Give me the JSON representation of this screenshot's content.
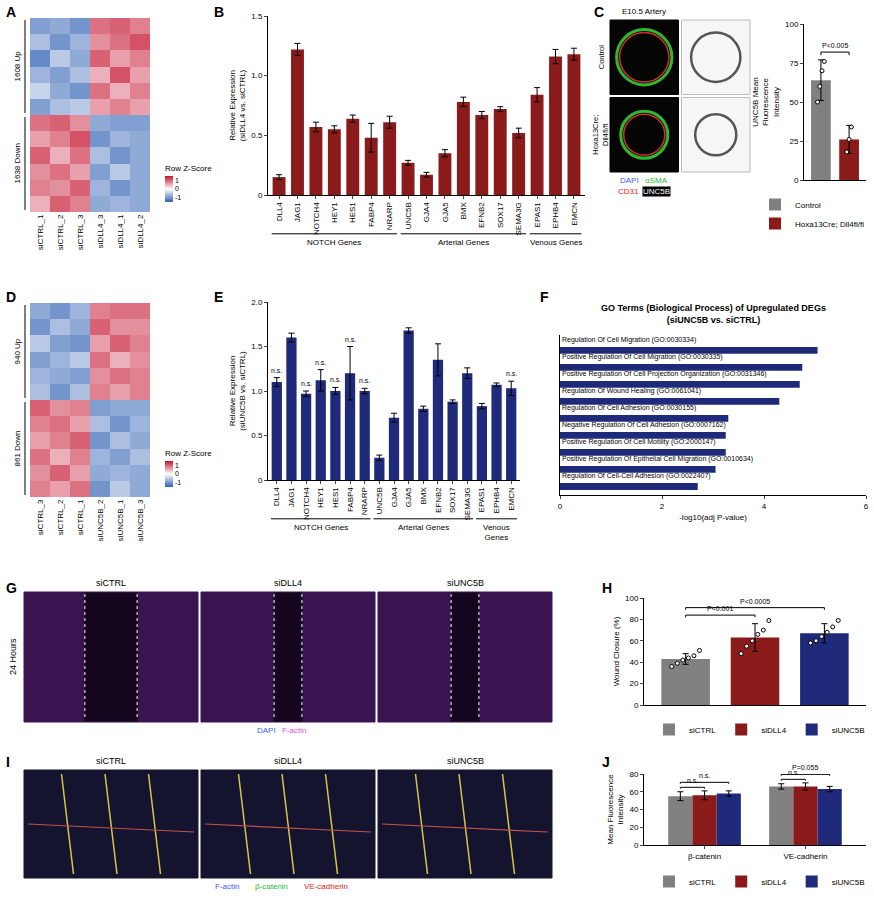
{
  "chart_data": [
    {
      "panel": "A",
      "type": "heatmap",
      "tick_labels": "x",
      "columns": [
        "siCTRL_1",
        "siCTRL_2",
        "siCTRL_3",
        "siDLL4_3",
        "siDLL4_1",
        "siDLL4_2"
      ],
      "groups": [
        {
          "label": "1608 Up",
          "z": [
            [
              -0.9,
              -0.8,
              -1.0,
              0.9,
              1.0,
              0.8
            ],
            [
              -0.6,
              -1.0,
              -0.7,
              0.7,
              0.9,
              1.1
            ],
            [
              -1.1,
              -0.5,
              -0.8,
              1.0,
              0.6,
              0.8
            ],
            [
              -0.7,
              -0.9,
              -0.6,
              0.5,
              1.1,
              0.6
            ],
            [
              -0.4,
              -0.8,
              -1.0,
              0.9,
              0.5,
              0.8
            ],
            [
              -0.9,
              -0.6,
              -0.5,
              0.6,
              0.8,
              0.6
            ]
          ]
        },
        {
          "label": "1638 Down",
          "z": [
            [
              0.9,
              1.0,
              0.7,
              -0.8,
              -0.9,
              -0.9
            ],
            [
              0.6,
              0.8,
              1.1,
              -1.0,
              -0.7,
              -0.8
            ],
            [
              1.0,
              0.5,
              0.9,
              -0.6,
              -1.0,
              -0.8
            ],
            [
              0.7,
              0.9,
              0.6,
              -0.9,
              -0.5,
              -0.8
            ],
            [
              0.8,
              0.7,
              1.0,
              -0.7,
              -1.0,
              -0.8
            ],
            [
              0.5,
              1.0,
              0.8,
              -0.8,
              -0.7,
              -0.8
            ]
          ]
        }
      ],
      "colorbar": {
        "title": "Row Z-Score",
        "range": [
          -1.5,
          1.5
        ],
        "ticks": [
          -1,
          0,
          1
        ]
      }
    },
    {
      "panel": "B",
      "type": "bar",
      "categories": [
        "DLL4",
        "JAG1",
        "NOTCH4",
        "HEY1",
        "HES1",
        "FABP4",
        "NRARP",
        "UNC5B",
        "GJA4",
        "GJA5",
        "BMX",
        "EFNB2",
        "SOX17",
        "SEMA3G",
        "EPAS1",
        "EPHB4",
        "EMCN"
      ],
      "values": [
        0.15,
        1.22,
        0.57,
        0.55,
        0.64,
        0.48,
        0.61,
        0.27,
        0.17,
        0.35,
        0.78,
        0.67,
        0.72,
        0.52,
        0.84,
        1.16,
        1.18
      ],
      "errors": [
        0.02,
        0.05,
        0.04,
        0.03,
        0.03,
        0.12,
        0.05,
        0.02,
        0.02,
        0.03,
        0.04,
        0.03,
        0.02,
        0.04,
        0.06,
        0.06,
        0.05
      ],
      "color": "#8b1a1a",
      "ylabel": "Relative Expression (siDLL4 vs. siCTRL)",
      "ylim": [
        0,
        1.5
      ],
      "yticks": [
        0,
        0.5,
        {
          "value": 1,
          "label": "1.0"
        },
        1.5
      ],
      "groups": [
        {
          "label": "NOTCH Genes",
          "from": "DLL4",
          "to": "NRARP"
        },
        {
          "label": "Arterial Genes",
          "from": "UNC5B",
          "to": "SEMA3G"
        },
        {
          "label": "Venous Genes",
          "from": "EPAS1",
          "to": "EMCN"
        }
      ]
    },
    {
      "type": "bar",
      "categories": [
        "Control",
        "Hoxa13Cre; Dll4fl/fl"
      ],
      "values": [
        64,
        26
      ],
      "errors": [
        13,
        9
      ],
      "points": [
        [
          50,
          60,
          70,
          76
        ],
        [
          18,
          26,
          34
        ]
      ],
      "colors": [
        "#808080",
        "#8b1a1a"
      ],
      "ylabel": "UNC5B Mean Fluorescence Intensity",
      "ylim": [
        0,
        100
      ],
      "yticks": [
        0,
        25,
        50,
        75,
        100
      ],
      "tick_labels": "y",
      "legend": "bottom",
      "comparisons": [
        {
          "from": "Control",
          "to": "Hoxa13Cre; Dll4fl/fl",
          "text": "P<0.005"
        }
      ]
    },
    {
      "panel": "D",
      "type": "heatmap",
      "tick_labels": "x",
      "columns": [
        "siCTRL_3",
        "siCTRL_2",
        "siCTRL_1",
        "siUNC5B_2",
        "siUNC5B_1",
        "siUNC5B_3"
      ],
      "groups": [
        {
          "label": "940 Up",
          "z": [
            [
              -0.8,
              -1.0,
              -0.7,
              0.8,
              0.9,
              0.9
            ],
            [
              -1.0,
              -0.6,
              -0.8,
              1.0,
              0.7,
              0.7
            ],
            [
              -0.5,
              -0.9,
              -1.0,
              0.6,
              1.0,
              0.8
            ],
            [
              -0.9,
              -0.7,
              -0.5,
              0.9,
              0.5,
              0.7
            ],
            [
              -0.7,
              -0.8,
              -0.9,
              0.7,
              0.9,
              0.8
            ],
            [
              -0.6,
              -1.0,
              -0.6,
              0.8,
              0.6,
              0.8
            ]
          ]
        },
        {
          "label": "861 Down",
          "z": [
            [
              1.0,
              0.7,
              0.8,
              -0.9,
              -0.8,
              -0.8
            ],
            [
              0.8,
              0.9,
              0.6,
              -0.6,
              -1.0,
              -0.7
            ],
            [
              0.6,
              0.8,
              1.0,
              -1.0,
              -0.6,
              -0.8
            ],
            [
              0.9,
              0.5,
              0.8,
              -0.7,
              -0.9,
              -0.6
            ],
            [
              0.7,
              1.0,
              0.6,
              -0.8,
              -0.7,
              -0.8
            ],
            [
              0.8,
              0.6,
              0.9,
              -1.0,
              -0.5,
              -0.8
            ]
          ]
        }
      ],
      "colorbar": {
        "title": "Row Z-Score",
        "range": [
          -1.5,
          1.5
        ],
        "ticks": [
          -1,
          0,
          1
        ]
      }
    },
    {
      "panel": "E",
      "type": "bar",
      "categories": [
        "DLL4",
        "JAG1",
        "NOTCH4",
        "HEY1",
        "HES1",
        "FABP4",
        "NRARP",
        "UNC5B",
        "GJA4",
        "GJA5",
        "BMX",
        "EFNB2",
        "SOX17",
        "SEMA3G",
        "EPAS1",
        "EPHB4",
        "EMCN"
      ],
      "values": [
        1.1,
        1.6,
        0.97,
        1.12,
        1.0,
        1.2,
        1.0,
        0.25,
        0.7,
        1.68,
        0.8,
        1.35,
        0.88,
        1.2,
        0.83,
        1.07,
        1.03
      ],
      "errors": [
        0.05,
        0.05,
        0.03,
        0.12,
        0.04,
        0.3,
        0.03,
        0.03,
        0.05,
        0.03,
        0.03,
        0.18,
        0.02,
        0.06,
        0.03,
        0.02,
        0.08
      ],
      "color": "#1f2a7a",
      "ylabel": "Relative Expression (siUNC5B vs. siCTRL)",
      "ylim": [
        0,
        2
      ],
      "yticks": [
        0,
        0.5,
        {
          "value": 1,
          "label": "1.0"
        },
        1.5,
        {
          "value": 2,
          "label": "2.0"
        }
      ],
      "groups": [
        {
          "label": "NOTCH Genes",
          "from": "DLL4",
          "to": "NRARP"
        },
        {
          "label": "Arterial Genes",
          "from": "UNC5B",
          "to": "SEMA3G"
        },
        {
          "label": "Venous Genes",
          "from": "EPAS1",
          "to": "EMCN"
        }
      ],
      "annotations": [
        {
          "category": "DLL4",
          "text": "n.s."
        },
        {
          "category": "NOTCH4",
          "text": "n.s."
        },
        {
          "category": "HEY1",
          "text": "n.s."
        },
        {
          "category": "HES1",
          "text": "n.s."
        },
        {
          "category": "FABP4",
          "text": "n.s."
        },
        {
          "category": "NRARP",
          "text": "n.s."
        },
        {
          "category": "EMCN",
          "text": "n.s."
        }
      ]
    },
    {
      "panel": "F",
      "type": "bar",
      "orientation": "horizontal",
      "tick_labels": "x",
      "title": "GO Terms (Biological Process) of Upregulated DEGs (siUNC5B vs. siCTRL)",
      "categories": [
        "Regulation Of Cell Migration (GO:0030334)",
        "Positive Regulation Of Cell Migration (GO:0030335)",
        "Positive Regulation Of Cell Projection Organization (GO:0031346)",
        "Regulation Of Wound Healing (GO:0061041)",
        "Regulation Of Cell Adhesion (GO:0030155)",
        "Negative Regulation Of Cell Adhesion (GO:0007162)",
        "Positive Regulation Of Cell Motility (GO:2000147)",
        "Positive Regulation Of Epithelial Cell Migration (GO:0010634)",
        "Regulation Of Cell-Cell Adhesion (GO:0022407)"
      ],
      "values": [
        5.05,
        4.75,
        4.7,
        4.3,
        3.3,
        3.25,
        3.25,
        3.05,
        2.7
      ],
      "color": "#1f2a7a",
      "xlabel": "-log10(adj P-value)",
      "xlim": [
        0,
        6
      ],
      "xticks": [
        0,
        2,
        4,
        6
      ]
    },
    {
      "panel": "H",
      "type": "bar",
      "categories": [
        "siCTRL",
        "siDLL4",
        "siUNC5B"
      ],
      "values": [
        43,
        63,
        67
      ],
      "errors": [
        5,
        13,
        9
      ],
      "points": [
        [
          36,
          39,
          42,
          44,
          46,
          51
        ],
        [
          48,
          55,
          60,
          66,
          70,
          79
        ],
        [
          58,
          60,
          64,
          68,
          73,
          79
        ]
      ],
      "colors": [
        "#808080",
        "#8b1a1a",
        "#1f2a7a"
      ],
      "ylabel": "Wound Closure (%)",
      "ylim": [
        0,
        100
      ],
      "yticks": [
        0,
        20,
        40,
        60,
        80,
        100
      ],
      "tick_labels": "y",
      "legend": "bottom",
      "comparisons": [
        {
          "from": "siCTRL",
          "to": "siDLL4",
          "text": "P<0.001"
        },
        {
          "from": "siCTRL",
          "to": "siUNC5B",
          "text": "P<0.0005"
        }
      ]
    },
    {
      "panel": "J",
      "type": "bar",
      "categories": [
        "β-catenin",
        "VE-cadherin"
      ],
      "series": [
        {
          "name": "siCTRL",
          "color": "#808080",
          "values": [
            55,
            66
          ],
          "errors": [
            5,
            3
          ]
        },
        {
          "name": "siDLL4",
          "color": "#8b1a1a",
          "values": [
            56,
            66
          ],
          "errors": [
            5,
            4
          ]
        },
        {
          "name": "siUNC5B",
          "color": "#1f2a7a",
          "values": [
            58,
            63
          ],
          "errors": [
            3,
            3
          ]
        }
      ],
      "ylabel": "Mean Fluorescence Intensity",
      "ylim": [
        0,
        80
      ],
      "yticks": [
        0,
        20,
        40,
        60,
        80
      ],
      "legend": "bottom",
      "comparisons": [
        {
          "category": "β-catenin",
          "from": "siCTRL",
          "to": "siDLL4",
          "text": "n.s."
        },
        {
          "category": "β-catenin",
          "from": "siCTRL",
          "to": "siUNC5B",
          "text": "n.s."
        },
        {
          "category": "VE-cadherin",
          "from": "siCTRL",
          "to": "siDLL4",
          "text": "n.s."
        },
        {
          "category": "VE-cadherin",
          "from": "siCTRL",
          "to": "siUNC5B",
          "text": "P=0.055"
        }
      ]
    }
  ],
  "micrographs": [
    {
      "panel": "C",
      "title": "E10.5 Artery",
      "rows": [
        "Control",
        "Hoxa13Cre; Dll4fl/fl"
      ],
      "stains": [
        {
          "name": "DAPI",
          "color": "#3d5cff"
        },
        {
          "name": "αSMA",
          "color": "#2fb82f"
        },
        {
          "name": "CD31",
          "color": "#e02424"
        },
        {
          "name": "UNC5B",
          "color": "#ffffff"
        }
      ]
    },
    {
      "panel": "G",
      "row_label": "24 Hours",
      "columns": [
        "siCTRL",
        "siDLL4",
        "siUNC5B"
      ],
      "stains": [
        {
          "name": "DAPI",
          "color": "#3d5cff"
        },
        {
          "name": "F-actin",
          "color": "#d94fd9"
        }
      ]
    },
    {
      "panel": "I",
      "columns": [
        "siCTRL",
        "siDLL4",
        "siUNC5B"
      ],
      "stains": [
        {
          "name": "F-actin",
          "color": "#3d5cff"
        },
        {
          "name": "β-catenin",
          "color": "#2fb82f"
        },
        {
          "name": "VE-cadherin",
          "color": "#e02424"
        }
      ]
    }
  ]
}
